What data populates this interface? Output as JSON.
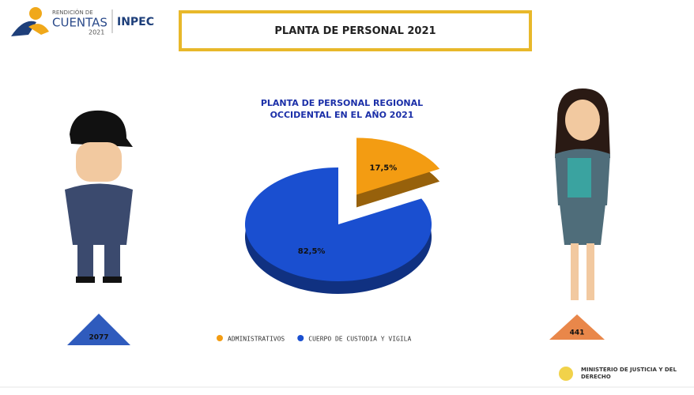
{
  "header": {
    "logo_line1": "RENDICIÓN DE",
    "logo_line2": "CUENTAS",
    "logo_year": "2021",
    "brand": "INPEC",
    "title": "PLANTA DE PERSONAL 2021"
  },
  "chart_data": {
    "type": "pie",
    "title": "PLANTA DE PERSONAL REGIONAL OCCIDENTAL EN EL AÑO 2021",
    "categories": [
      "ADMINISTRATIVOS",
      "CUERPO DE CUSTODIA Y VIGILA"
    ],
    "values": [
      17.5,
      82.5
    ],
    "value_labels": [
      "17,5%",
      "82,5%"
    ],
    "colors": [
      "#f39c12",
      "#1a4fd0"
    ],
    "legend": "bottom"
  },
  "badges": [
    2077,
    441
  ],
  "footer": {
    "ministry": "MINISTERIO DE JUSTICIA Y DEL DERECHO"
  }
}
